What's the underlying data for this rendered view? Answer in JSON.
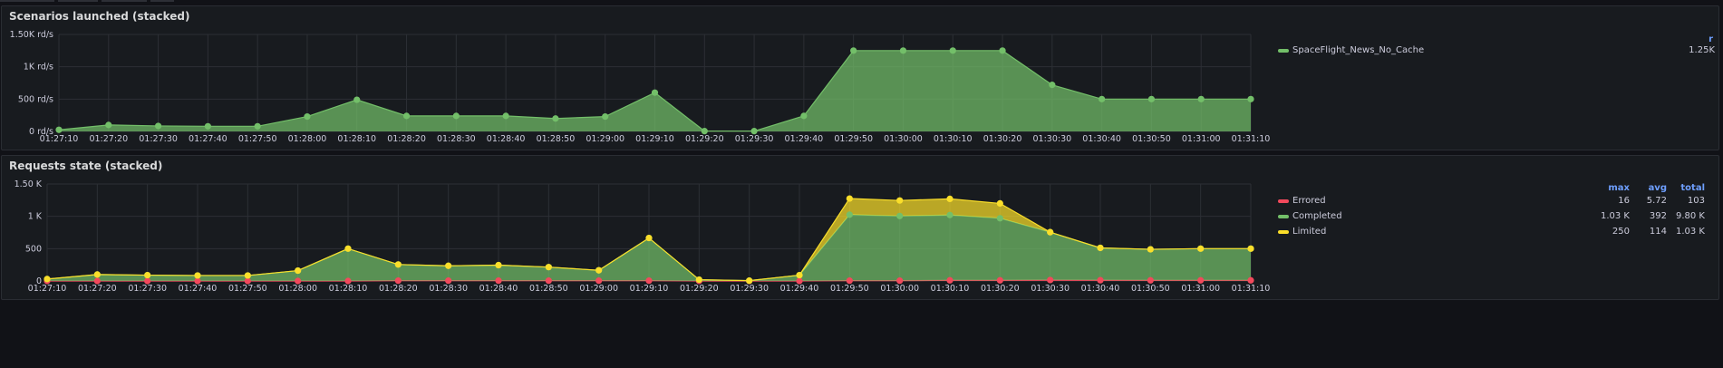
{
  "colors": {
    "green": "#73bf69",
    "yellow": "#fade2a",
    "red": "#f2495c",
    "header": "#6e9fff"
  },
  "panels": [
    {
      "title": "Scenarios launched (stacked)",
      "legend": {
        "headers": [
          "r"
        ],
        "items": [
          {
            "name": "SpaceFlight_News_No_Cache",
            "color": "#73bf69",
            "values": [
              "1.25K"
            ]
          }
        ]
      }
    },
    {
      "title": "Requests state (stacked)",
      "legend": {
        "headers": [
          "max",
          "avg",
          "total"
        ],
        "items": [
          {
            "name": "Errored",
            "color": "#f2495c",
            "values": [
              "16",
              "5.72",
              "103"
            ]
          },
          {
            "name": "Completed",
            "color": "#73bf69",
            "values": [
              "1.03 K",
              "392",
              "9.80 K"
            ]
          },
          {
            "name": "Limited",
            "color": "#fade2a",
            "values": [
              "250",
              "114",
              "1.03 K"
            ]
          }
        ]
      }
    }
  ],
  "chart_data": [
    {
      "type": "area",
      "title": "Scenarios launched (stacked)",
      "stacked": true,
      "x": [
        "01:27:10",
        "01:27:20",
        "01:27:30",
        "01:27:40",
        "01:27:50",
        "01:28:00",
        "01:28:10",
        "01:28:20",
        "01:28:30",
        "01:28:40",
        "01:28:50",
        "01:29:00",
        "01:29:10",
        "01:29:20",
        "01:29:30",
        "01:29:40",
        "01:29:50",
        "01:30:00",
        "01:30:10",
        "01:30:20",
        "01:30:30",
        "01:30:40",
        "01:30:50",
        "01:31:00",
        "01:31:10"
      ],
      "yticks": [
        "0 rd/s",
        "500 rd/s",
        "1K rd/s",
        "1.50K rd/s"
      ],
      "ylim": [
        0,
        1500
      ],
      "grid": true,
      "legend_position": "right",
      "series": [
        {
          "name": "SpaceFlight_News_No_Cache",
          "color": "#73bf69",
          "values": [
            25,
            100,
            85,
            80,
            80,
            230,
            490,
            240,
            240,
            240,
            200,
            230,
            600,
            5,
            5,
            240,
            1250,
            1250,
            1250,
            1250,
            720,
            500,
            500,
            500,
            500
          ]
        }
      ]
    },
    {
      "type": "area",
      "title": "Requests state (stacked)",
      "stacked": true,
      "x": [
        "01:27:10",
        "01:27:20",
        "01:27:30",
        "01:27:40",
        "01:27:50",
        "01:28:00",
        "01:28:10",
        "01:28:20",
        "01:28:30",
        "01:28:40",
        "01:28:50",
        "01:29:00",
        "01:29:10",
        "01:29:20",
        "01:29:30",
        "01:29:40",
        "01:29:50",
        "01:30:00",
        "01:30:10",
        "01:30:20",
        "01:30:30",
        "01:30:40",
        "01:30:50",
        "01:31:00",
        "01:31:10"
      ],
      "yticks": [
        "0",
        "500",
        "1 K",
        "1.50 K"
      ],
      "ylim": [
        0,
        1500
      ],
      "grid": true,
      "legend_position": "right",
      "series": [
        {
          "name": "Errored",
          "color": "#f2495c",
          "values": [
            0,
            0,
            0,
            0,
            0,
            0,
            0,
            5,
            5,
            5,
            5,
            5,
            5,
            0,
            0,
            0,
            5,
            5,
            10,
            10,
            15,
            12,
            10,
            10,
            10
          ]
        },
        {
          "name": "Completed",
          "color": "#73bf69",
          "values": [
            30,
            100,
            90,
            85,
            85,
            160,
            500,
            250,
            230,
            240,
            210,
            160,
            660,
            20,
            5,
            90,
            1020,
            1000,
            1010,
            960,
            740,
            500,
            480,
            490,
            490
          ]
        },
        {
          "name": "Limited",
          "color": "#fade2a",
          "values": [
            0,
            0,
            0,
            0,
            0,
            0,
            0,
            0,
            0,
            0,
            0,
            0,
            0,
            0,
            0,
            0,
            250,
            240,
            250,
            230,
            0,
            0,
            0,
            0,
            0
          ]
        }
      ]
    }
  ]
}
